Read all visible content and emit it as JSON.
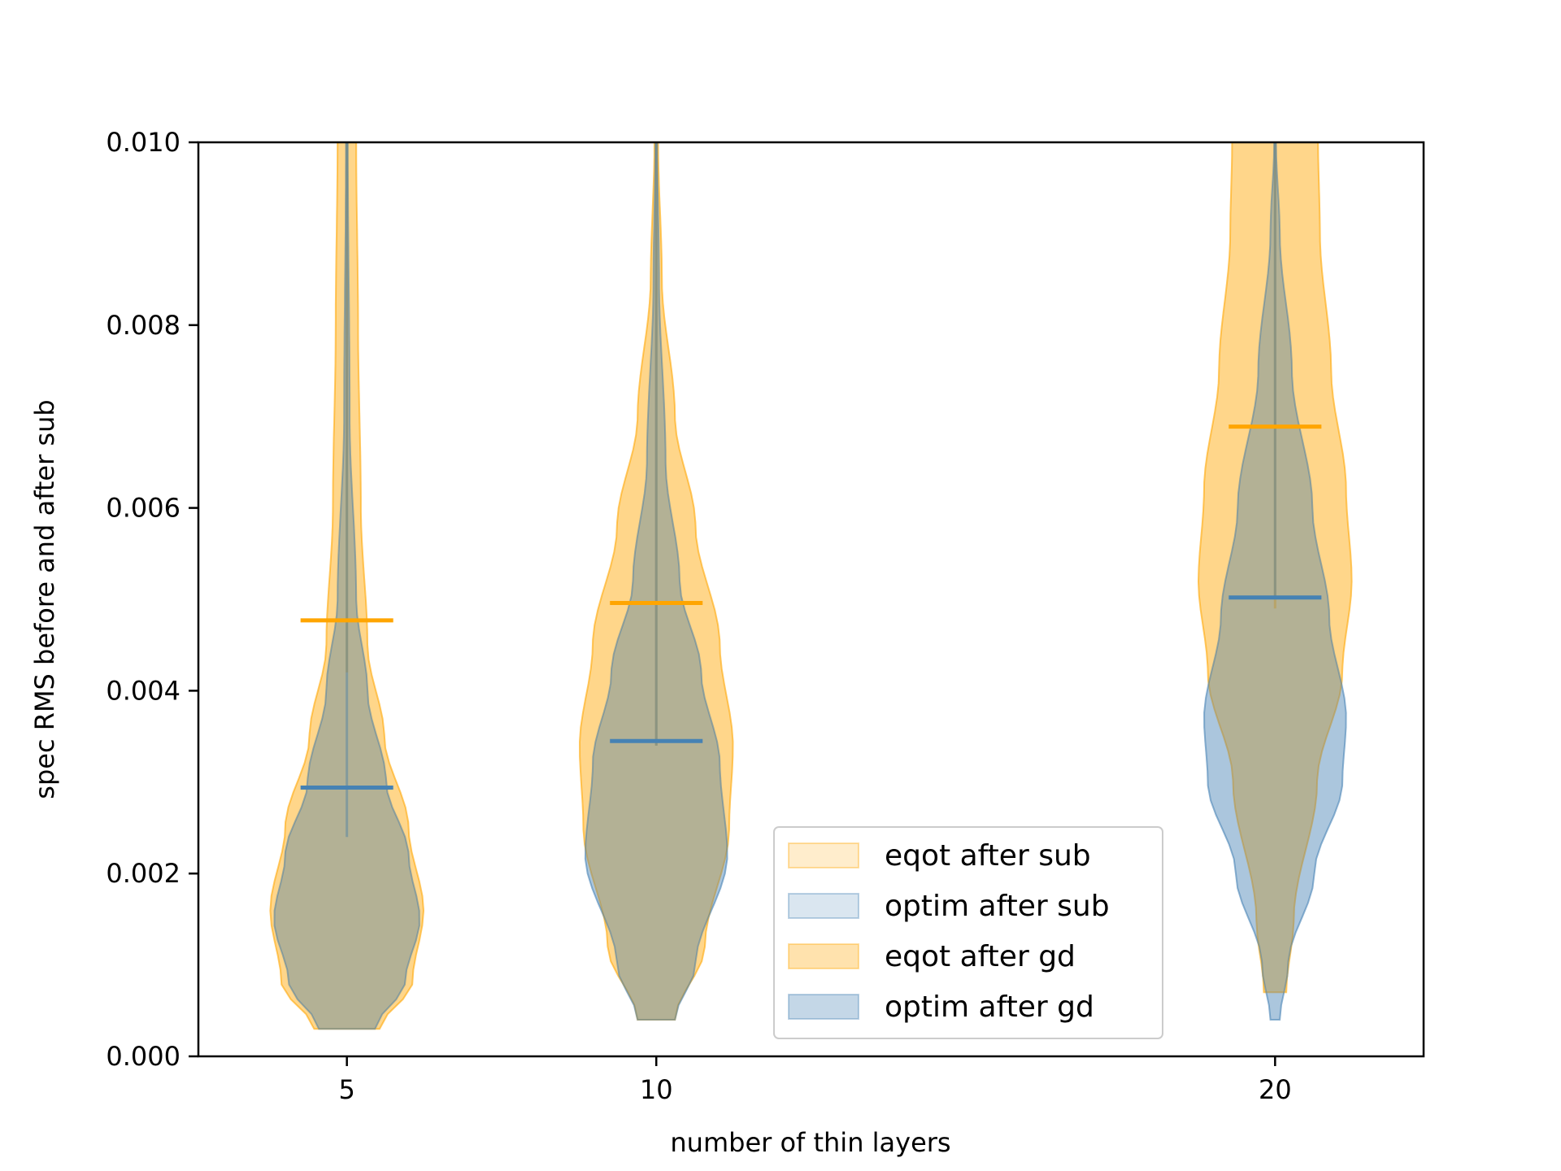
{
  "chart_data": {
    "type": "violin",
    "title": "",
    "xlabel": "number of thin layers",
    "ylabel": "spec RMS before and after sub",
    "x_positions": [
      5,
      10,
      20
    ],
    "x_tick_labels": [
      "5",
      "10",
      "20"
    ],
    "xlim": [
      2.6,
      22.4
    ],
    "ylim": [
      0,
      0.01
    ],
    "y_ticks": [
      0,
      0.002,
      0.004,
      0.006,
      0.008,
      0.01
    ],
    "y_tick_labels": [
      "0.000",
      "0.002",
      "0.004",
      "0.006",
      "0.008",
      "0.010"
    ],
    "grid": false,
    "legend_position": "lower-right",
    "colors": {
      "eqot": "#ffa500",
      "optim": "#4682b4"
    },
    "series": [
      {
        "name": "eqot after sub",
        "color": "#ffa500",
        "alpha": 0.2,
        "violins": [
          {
            "x": 5,
            "min": 0.0003,
            "max": 0.01,
            "median": 0.0042,
            "profile": [
              [
                0.0003,
                0.35
              ],
              [
                0.0008,
                0.7
              ],
              [
                0.0016,
                0.82
              ],
              [
                0.0025,
                0.66
              ],
              [
                0.0035,
                0.4
              ],
              [
                0.0045,
                0.22
              ],
              [
                0.006,
                0.15
              ],
              [
                0.008,
                0.12
              ],
              [
                0.01,
                0.1
              ]
            ]
          },
          {
            "x": 10,
            "min": 0.0004,
            "max": 0.01,
            "median": 0.0034,
            "profile": [
              [
                0.0004,
                0.2
              ],
              [
                0.0012,
                0.52
              ],
              [
                0.0025,
                0.78
              ],
              [
                0.0034,
                0.82
              ],
              [
                0.0045,
                0.68
              ],
              [
                0.0058,
                0.42
              ],
              [
                0.007,
                0.2
              ],
              [
                0.0085,
                0.06
              ],
              [
                0.01,
                0.02
              ]
            ]
          },
          {
            "x": 20,
            "min": 0.0007,
            "max": 0.01,
            "median": 0.0049,
            "profile": [
              [
                0.0007,
                0.12
              ],
              [
                0.0015,
                0.2
              ],
              [
                0.003,
                0.45
              ],
              [
                0.0042,
                0.72
              ],
              [
                0.0052,
                0.82
              ],
              [
                0.0062,
                0.76
              ],
              [
                0.0075,
                0.6
              ],
              [
                0.009,
                0.48
              ],
              [
                0.01,
                0.46
              ]
            ]
          }
        ]
      },
      {
        "name": "optim after sub",
        "color": "#4682b4",
        "alpha": 0.2,
        "violins": [
          {
            "x": 5,
            "min": 0.0003,
            "max": 0.01,
            "median": 0.0024,
            "profile": [
              [
                0.0003,
                0.3
              ],
              [
                0.0008,
                0.62
              ],
              [
                0.0015,
                0.78
              ],
              [
                0.0022,
                0.66
              ],
              [
                0.003,
                0.42
              ],
              [
                0.004,
                0.22
              ],
              [
                0.005,
                0.1
              ],
              [
                0.007,
                0.03
              ],
              [
                0.01,
                0.01
              ]
            ]
          },
          {
            "x": 10,
            "min": 0.0004,
            "max": 0.01,
            "median": 0.0034,
            "profile": [
              [
                0.0004,
                0.2
              ],
              [
                0.001,
                0.42
              ],
              [
                0.0022,
                0.76
              ],
              [
                0.0032,
                0.68
              ],
              [
                0.0042,
                0.48
              ],
              [
                0.0052,
                0.25
              ],
              [
                0.0065,
                0.1
              ],
              [
                0.0085,
                0.03
              ],
              [
                0.01,
                0.01
              ]
            ]
          },
          {
            "x": 20,
            "min": 0.0004,
            "max": 0.01,
            "median": 0.005,
            "profile": [
              [
                0.0004,
                0.05
              ],
              [
                0.001,
                0.14
              ],
              [
                0.002,
                0.42
              ],
              [
                0.003,
                0.72
              ],
              [
                0.0037,
                0.76
              ],
              [
                0.0048,
                0.58
              ],
              [
                0.006,
                0.4
              ],
              [
                0.0075,
                0.18
              ],
              [
                0.009,
                0.05
              ],
              [
                0.01,
                0.01
              ]
            ]
          }
        ]
      },
      {
        "name": "eqot after gd",
        "color": "#ffa500",
        "alpha": 0.32,
        "violins": [
          {
            "x": 5,
            "min": 0.0003,
            "max": 0.01,
            "median": 0.0042,
            "profile": [
              [
                0.0003,
                0.35
              ],
              [
                0.0008,
                0.7
              ],
              [
                0.0016,
                0.82
              ],
              [
                0.0025,
                0.66
              ],
              [
                0.0035,
                0.4
              ],
              [
                0.0045,
                0.22
              ],
              [
                0.006,
                0.15
              ],
              [
                0.008,
                0.12
              ],
              [
                0.01,
                0.1
              ]
            ]
          },
          {
            "x": 10,
            "min": 0.0004,
            "max": 0.01,
            "median": 0.0034,
            "profile": [
              [
                0.0004,
                0.2
              ],
              [
                0.0012,
                0.52
              ],
              [
                0.0025,
                0.78
              ],
              [
                0.0034,
                0.82
              ],
              [
                0.0045,
                0.68
              ],
              [
                0.0058,
                0.42
              ],
              [
                0.007,
                0.2
              ],
              [
                0.0085,
                0.06
              ],
              [
                0.01,
                0.02
              ]
            ]
          },
          {
            "x": 20,
            "min": 0.0007,
            "max": 0.01,
            "median": 0.0049,
            "profile": [
              [
                0.0007,
                0.12
              ],
              [
                0.0015,
                0.2
              ],
              [
                0.003,
                0.45
              ],
              [
                0.0042,
                0.72
              ],
              [
                0.0052,
                0.82
              ],
              [
                0.0062,
                0.76
              ],
              [
                0.0075,
                0.6
              ],
              [
                0.009,
                0.48
              ],
              [
                0.01,
                0.46
              ]
            ]
          }
        ]
      },
      {
        "name": "optim after gd",
        "color": "#4682b4",
        "alpha": 0.32,
        "violins": [
          {
            "x": 5,
            "min": 0.0003,
            "max": 0.01,
            "median": 0.0024,
            "profile": [
              [
                0.0003,
                0.3
              ],
              [
                0.0008,
                0.62
              ],
              [
                0.0015,
                0.78
              ],
              [
                0.0022,
                0.66
              ],
              [
                0.003,
                0.42
              ],
              [
                0.004,
                0.22
              ],
              [
                0.005,
                0.1
              ],
              [
                0.007,
                0.03
              ],
              [
                0.01,
                0.01
              ]
            ]
          },
          {
            "x": 10,
            "min": 0.0004,
            "max": 0.01,
            "median": 0.0034,
            "profile": [
              [
                0.0004,
                0.2
              ],
              [
                0.001,
                0.42
              ],
              [
                0.0022,
                0.76
              ],
              [
                0.0032,
                0.68
              ],
              [
                0.0042,
                0.48
              ],
              [
                0.0052,
                0.25
              ],
              [
                0.0065,
                0.1
              ],
              [
                0.0085,
                0.03
              ],
              [
                0.01,
                0.01
              ]
            ]
          },
          {
            "x": 20,
            "min": 0.0004,
            "max": 0.01,
            "median": 0.005,
            "profile": [
              [
                0.0004,
                0.05
              ],
              [
                0.001,
                0.14
              ],
              [
                0.002,
                0.42
              ],
              [
                0.003,
                0.72
              ],
              [
                0.0037,
                0.76
              ],
              [
                0.0048,
                0.58
              ],
              [
                0.006,
                0.4
              ],
              [
                0.0075,
                0.18
              ],
              [
                0.009,
                0.05
              ],
              [
                0.01,
                0.01
              ]
            ]
          }
        ]
      }
    ],
    "mean_markers": [
      {
        "series": "eqot",
        "color": "#ffa500",
        "points": [
          {
            "x": 5,
            "y": 0.00477
          },
          {
            "x": 10,
            "y": 0.00496
          },
          {
            "x": 20,
            "y": 0.00689
          }
        ]
      },
      {
        "series": "optim",
        "color": "#4682b4",
        "points": [
          {
            "x": 5,
            "y": 0.00294
          },
          {
            "x": 10,
            "y": 0.00345
          },
          {
            "x": 20,
            "y": 0.00502
          }
        ]
      }
    ]
  }
}
